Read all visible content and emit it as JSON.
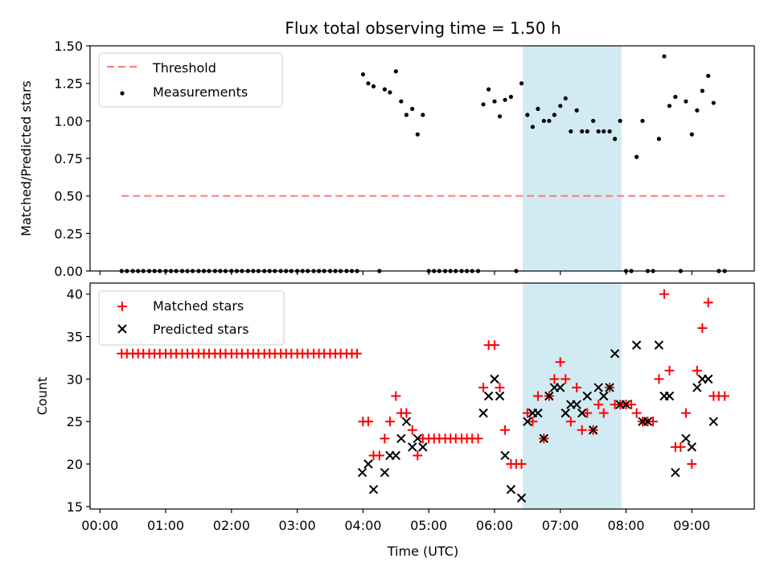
{
  "title": "Flux total observing time = 1.50 h",
  "top": {
    "ylabel": "Matched/Predicted stars",
    "yticks": [
      "0.00",
      "0.25",
      "0.50",
      "0.75",
      "1.00",
      "1.25",
      "1.50"
    ],
    "legend": {
      "threshold": "Threshold",
      "measurements": "Measurements"
    }
  },
  "bottom": {
    "ylabel": "Count",
    "yticks": [
      "15",
      "20",
      "25",
      "30",
      "35",
      "40"
    ],
    "legend": {
      "matched": "Matched stars",
      "predicted": "Predicted stars"
    }
  },
  "xlabel": "Time (UTC)",
  "xticks": [
    "00:00",
    "01:00",
    "02:00",
    "03:00",
    "04:00",
    "05:00",
    "06:00",
    "07:00",
    "08:00",
    "09:00"
  ],
  "colors": {
    "threshold": "#ff7777",
    "measurement": "#000000",
    "matched": "#ff0000",
    "predicted": "#000000",
    "shade": "#add8e6"
  },
  "chart_data": [
    {
      "type": "scatter",
      "panel": "top",
      "title": "Flux total observing time = 1.50 h",
      "xlabel": "",
      "ylabel": "Matched/Predicted stars",
      "x_unit": "hours UTC",
      "xlim": [
        -0.15,
        9.95
      ],
      "ylim": [
        0,
        1.5
      ],
      "legend_position": "top-left",
      "threshold": {
        "value": 0.5,
        "x": [
          0.33,
          9.5
        ]
      },
      "shaded_region": [
        6.43,
        7.93
      ],
      "series": [
        {
          "name": "Measurements",
          "x": [
            0.33,
            0.41,
            0.5,
            0.58,
            0.66,
            0.75,
            0.83,
            0.91,
            1.0,
            1.08,
            1.16,
            1.25,
            1.33,
            1.41,
            1.5,
            1.58,
            1.66,
            1.75,
            1.83,
            1.91,
            2.0,
            2.08,
            2.16,
            2.25,
            2.33,
            2.41,
            2.5,
            2.58,
            2.66,
            2.75,
            2.83,
            2.91,
            3.0,
            3.08,
            3.16,
            3.25,
            3.33,
            3.41,
            3.5,
            3.58,
            3.66,
            3.75,
            3.83,
            3.91,
            4.0,
            4.08,
            4.16,
            4.25,
            4.33,
            4.41,
            4.5,
            4.58,
            4.66,
            4.75,
            4.83,
            4.91,
            5.0,
            5.08,
            5.16,
            5.25,
            5.33,
            5.41,
            5.5,
            5.58,
            5.66,
            5.75,
            5.83,
            5.91,
            6.0,
            6.08,
            6.16,
            6.25,
            6.33,
            6.41,
            6.5,
            6.58,
            6.66,
            6.75,
            6.83,
            6.91,
            7.0,
            7.08,
            7.16,
            7.25,
            7.33,
            7.41,
            7.5,
            7.58,
            7.66,
            7.75,
            7.83,
            7.91,
            8.0,
            8.08,
            8.16,
            8.25,
            8.33,
            8.41,
            8.5,
            8.58,
            8.66,
            8.75,
            8.83,
            8.91,
            9.0,
            9.08,
            9.16,
            9.25,
            9.33,
            9.41,
            9.5
          ],
          "y": [
            0,
            0,
            0,
            0,
            0,
            0,
            0,
            0,
            0,
            0,
            0,
            0,
            0,
            0,
            0,
            0,
            0,
            0,
            0,
            0,
            0,
            0,
            0,
            0,
            0,
            0,
            0,
            0,
            0,
            0,
            0,
            0,
            0,
            0,
            0,
            0,
            0,
            0,
            0,
            0,
            0,
            0,
            0,
            0,
            1.31,
            1.25,
            1.23,
            0,
            1.21,
            1.19,
            1.33,
            1.13,
            1.04,
            1.08,
            0.91,
            1.04,
            0,
            0,
            0,
            0,
            0,
            0,
            0,
            0,
            0,
            0,
            1.11,
            1.21,
            1.13,
            1.03,
            1.14,
            1.16,
            0,
            1.25,
            1.04,
            0.96,
            1.08,
            1.0,
            1.0,
            1.04,
            1.1,
            1.15,
            0.93,
            1.07,
            0.93,
            0.93,
            1.0,
            0.93,
            0.93,
            0.93,
            0.88,
            1.0,
            0,
            0,
            0.76,
            1.0,
            0,
            0,
            0.88,
            1.43,
            1.1,
            1.16,
            0,
            1.13,
            0.91,
            1.07,
            1.2,
            1.3,
            1.12,
            0,
            0
          ]
        }
      ]
    },
    {
      "type": "scatter",
      "panel": "bottom",
      "xlabel": "Time (UTC)",
      "ylabel": "Count",
      "x_unit": "hours UTC",
      "xlim": [
        -0.15,
        9.95
      ],
      "ylim": [
        14.7,
        41.3
      ],
      "legend_position": "top-left",
      "shaded_region": [
        6.43,
        7.93
      ],
      "series": [
        {
          "name": "Matched stars",
          "x": [
            0.33,
            0.41,
            0.5,
            0.58,
            0.66,
            0.75,
            0.83,
            0.91,
            1.0,
            1.08,
            1.16,
            1.25,
            1.33,
            1.41,
            1.5,
            1.58,
            1.66,
            1.75,
            1.83,
            1.91,
            2.0,
            2.08,
            2.16,
            2.25,
            2.33,
            2.41,
            2.5,
            2.58,
            2.66,
            2.75,
            2.83,
            2.91,
            3.0,
            3.08,
            3.16,
            3.25,
            3.33,
            3.41,
            3.5,
            3.58,
            3.66,
            3.75,
            3.83,
            3.91,
            4.0,
            4.08,
            4.16,
            4.25,
            4.33,
            4.41,
            4.5,
            4.58,
            4.66,
            4.75,
            4.83,
            4.91,
            5.0,
            5.08,
            5.16,
            5.25,
            5.33,
            5.41,
            5.5,
            5.58,
            5.66,
            5.75,
            5.83,
            5.91,
            6.0,
            6.08,
            6.16,
            6.25,
            6.33,
            6.41,
            6.5,
            6.58,
            6.66,
            6.75,
            6.83,
            6.91,
            7.0,
            7.08,
            7.16,
            7.25,
            7.33,
            7.41,
            7.5,
            7.58,
            7.66,
            7.75,
            7.83,
            7.91,
            8.0,
            8.08,
            8.16,
            8.25,
            8.33,
            8.41,
            8.5,
            8.58,
            8.66,
            8.75,
            8.83,
            8.91,
            9.0,
            9.08,
            9.16,
            9.25,
            9.33,
            9.41,
            9.5
          ],
          "y": [
            33,
            33,
            33,
            33,
            33,
            33,
            33,
            33,
            33,
            33,
            33,
            33,
            33,
            33,
            33,
            33,
            33,
            33,
            33,
            33,
            33,
            33,
            33,
            33,
            33,
            33,
            33,
            33,
            33,
            33,
            33,
            33,
            33,
            33,
            33,
            33,
            33,
            33,
            33,
            33,
            33,
            33,
            33,
            33,
            25,
            25,
            21,
            21,
            23,
            25,
            28,
            26,
            26,
            24,
            21,
            23,
            23,
            23,
            23,
            23,
            23,
            23,
            23,
            23,
            23,
            23,
            29,
            34,
            34,
            29,
            24,
            20,
            20,
            20,
            26,
            25,
            28,
            23,
            28,
            30,
            32,
            30,
            25,
            29,
            24,
            26,
            24,
            27,
            26,
            29,
            27,
            27,
            27,
            27,
            26,
            25,
            25,
            25,
            30,
            40,
            31,
            22,
            22,
            26,
            20,
            31,
            36,
            39,
            28,
            28,
            28
          ],
          "marker": "plus"
        },
        {
          "name": "Predicted stars",
          "x": [
            3.99,
            4.08,
            4.16,
            4.33,
            4.41,
            4.5,
            4.58,
            4.66,
            4.75,
            4.83,
            4.91,
            5.83,
            5.91,
            6.0,
            6.08,
            6.16,
            6.25,
            6.41,
            6.5,
            6.58,
            6.66,
            6.75,
            6.83,
            6.91,
            7.0,
            7.08,
            7.16,
            7.25,
            7.33,
            7.41,
            7.5,
            7.58,
            7.66,
            7.75,
            7.83,
            7.91,
            8.0,
            8.16,
            8.25,
            8.33,
            8.5,
            8.58,
            8.66,
            8.75,
            8.91,
            9.0,
            9.08,
            9.16,
            9.25,
            9.33
          ],
          "y": [
            19,
            20,
            17,
            19,
            21,
            21,
            23,
            25,
            22,
            23,
            22,
            26,
            28,
            30,
            28,
            21,
            17,
            16,
            25,
            26,
            26,
            23,
            28,
            29,
            29,
            26,
            27,
            27,
            26,
            28,
            24,
            29,
            28,
            29,
            33,
            27,
            27,
            34,
            25,
            25,
            34,
            28,
            28,
            19,
            23,
            22,
            29,
            30,
            30,
            25
          ],
          "marker": "x"
        }
      ]
    }
  ]
}
